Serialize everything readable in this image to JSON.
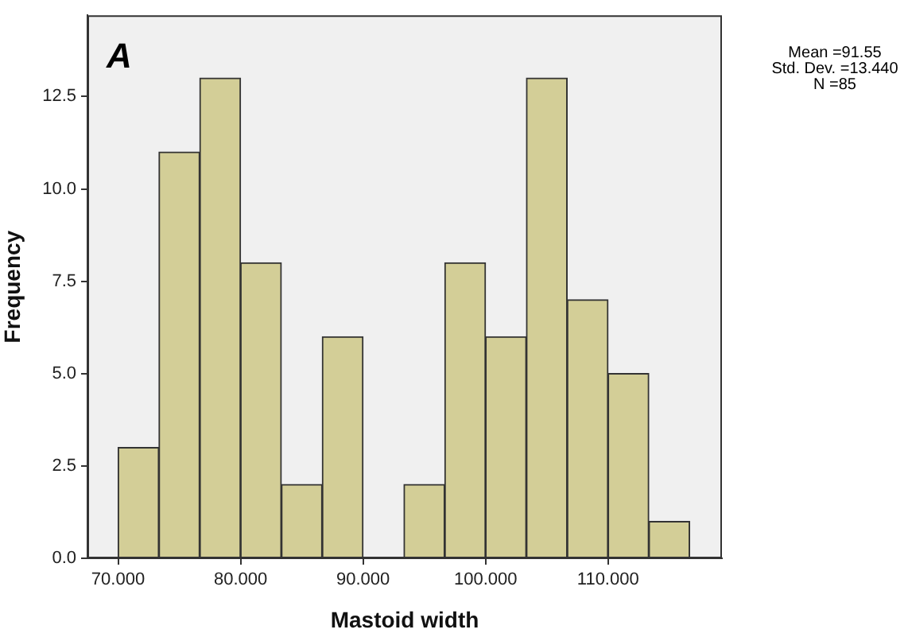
{
  "chart_data": {
    "type": "histogram",
    "xlabel": "Mastoid width",
    "ylabel": "Frequency",
    "annotations": [
      "A",
      "Mean =91.55",
      "Std. Dev. =13.440",
      "N =85"
    ],
    "bins": [
      70,
      73.33,
      76.67,
      80,
      83.33,
      86.67,
      90,
      93.33,
      96.67,
      100,
      103.33,
      106.67,
      110,
      113.33,
      116.67
    ],
    "values": [
      3,
      11,
      13,
      8,
      2,
      6,
      0,
      2,
      8,
      6,
      13,
      7,
      5,
      1
    ],
    "color": "#d3ce97",
    "xlim": [
      67.5,
      119.3
    ],
    "xticks": [
      {
        "value": 70,
        "label": "70.000"
      },
      {
        "value": 80,
        "label": "80.000"
      },
      {
        "value": 90,
        "label": "90.000"
      },
      {
        "value": 100,
        "label": "100.000"
      },
      {
        "value": 110,
        "label": "110.000"
      }
    ],
    "ylim": [
      0,
      14.7
    ],
    "yticks": [
      {
        "value": 0,
        "label": "0.0"
      },
      {
        "value": 2.5,
        "label": "2.5"
      },
      {
        "value": 5,
        "label": "5.0"
      },
      {
        "value": 7.5,
        "label": "7.5"
      },
      {
        "value": 10,
        "label": "10.0"
      },
      {
        "value": 12.5,
        "label": "12.5"
      }
    ],
    "grid": false,
    "legend": false
  }
}
